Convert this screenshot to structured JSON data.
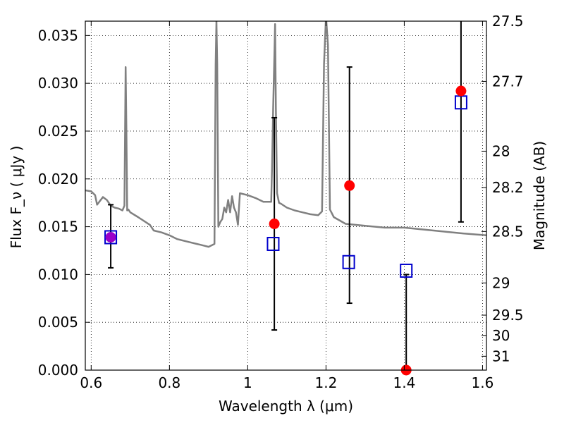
{
  "chart_data": {
    "type": "scatter",
    "xlabel": "Wavelength  λ (μm)",
    "ylabel": "Flux  F_ν  ( μJy )",
    "ylabel_right": "Magnitude (AB)",
    "xlim": [
      0.585,
      1.61
    ],
    "ylim": [
      0.0,
      0.0365
    ],
    "grid": true,
    "x_ticks": [
      {
        "value": 0.6,
        "label": "0.6"
      },
      {
        "value": 0.8,
        "label": "0.8"
      },
      {
        "value": 1.0,
        "label": "1"
      },
      {
        "value": 1.2,
        "label": "1.2"
      },
      {
        "value": 1.4,
        "label": "1.4"
      },
      {
        "value": 1.6,
        "label": "1.6"
      }
    ],
    "y_ticks": [
      {
        "value": 0.0,
        "label": "0.000"
      },
      {
        "value": 0.005,
        "label": "0.005"
      },
      {
        "value": 0.01,
        "label": "0.010"
      },
      {
        "value": 0.015,
        "label": "0.015"
      },
      {
        "value": 0.02,
        "label": "0.020"
      },
      {
        "value": 0.025,
        "label": "0.025"
      },
      {
        "value": 0.03,
        "label": "0.030"
      },
      {
        "value": 0.035,
        "label": "0.035"
      }
    ],
    "right_ticks": [
      {
        "label": "27.5",
        "flux": 0.0365
      },
      {
        "label": "27.7",
        "flux": 0.0302
      },
      {
        "label": "28",
        "flux": 0.0229
      },
      {
        "label": "28.2",
        "flux": 0.0191
      },
      {
        "label": "28.5",
        "flux": 0.0145
      },
      {
        "label": "29",
        "flux": 0.00912
      },
      {
        "label": "29.5",
        "flux": 0.00575
      },
      {
        "label": "30",
        "flux": 0.00363
      },
      {
        "label": "31",
        "flux": 0.00145
      }
    ],
    "sed_spectrum": {
      "name": "",
      "color": "#808080",
      "x": [
        0.585,
        0.6,
        0.61,
        0.615,
        0.63,
        0.64,
        0.65,
        0.66,
        0.67,
        0.68,
        0.685,
        0.688,
        0.69,
        0.692,
        0.695,
        0.7,
        0.72,
        0.75,
        0.76,
        0.78,
        0.8,
        0.82,
        0.85,
        0.87,
        0.88,
        0.89,
        0.9,
        0.915,
        0.918,
        0.92,
        0.922,
        0.925,
        0.93,
        0.935,
        0.94,
        0.945,
        0.95,
        0.955,
        0.96,
        0.965,
        0.97,
        0.975,
        0.98,
        1.0,
        1.02,
        1.04,
        1.06,
        1.062,
        1.065,
        1.07,
        1.072,
        1.075,
        1.08,
        1.085,
        1.1,
        1.12,
        1.14,
        1.16,
        1.18,
        1.19,
        1.195,
        1.2,
        1.205,
        1.21,
        1.22,
        1.25,
        1.3,
        1.35,
        1.4,
        1.45,
        1.5,
        1.55,
        1.61
      ],
      "y": [
        0.0188,
        0.0187,
        0.0183,
        0.0173,
        0.0181,
        0.0178,
        0.0172,
        0.017,
        0.0169,
        0.0167,
        0.0172,
        0.0317,
        0.025,
        0.0167,
        0.0168,
        0.0165,
        0.016,
        0.0152,
        0.0146,
        0.0144,
        0.0141,
        0.0137,
        0.0134,
        0.0132,
        0.0131,
        0.013,
        0.0129,
        0.0132,
        0.032,
        0.0365,
        0.032,
        0.015,
        0.0155,
        0.0158,
        0.017,
        0.0165,
        0.0178,
        0.0165,
        0.0182,
        0.017,
        0.0165,
        0.0152,
        0.0185,
        0.0183,
        0.018,
        0.0176,
        0.0176,
        0.021,
        0.0275,
        0.0362,
        0.0275,
        0.0185,
        0.0175,
        0.0174,
        0.017,
        0.0167,
        0.0165,
        0.0163,
        0.0162,
        0.0166,
        0.032,
        0.037,
        0.034,
        0.0168,
        0.016,
        0.0153,
        0.0151,
        0.0149,
        0.0149,
        0.0147,
        0.0145,
        0.0143,
        0.0141
      ]
    },
    "errorbars": [
      {
        "x": 0.65,
        "low": 0.0107,
        "high": 0.0173
      },
      {
        "x": 1.068,
        "low": 0.0042,
        "high": 0.0264
      },
      {
        "x": 1.26,
        "low": 0.007,
        "high": 0.0317
      },
      {
        "x": 1.405,
        "low": 0.0,
        "high": 0.01
      },
      {
        "x": 1.545,
        "low": 0.0155,
        "high": 0.0365
      }
    ],
    "model_points": {
      "name": "",
      "color": "#0000cc",
      "marker": "open-square",
      "x": [
        0.65,
        1.065,
        1.258,
        1.405,
        1.545
      ],
      "y": [
        0.0139,
        0.0132,
        0.0113,
        0.0104,
        0.028
      ]
    },
    "observed_points": {
      "name": "",
      "color": "#ff0000",
      "marker": "filled-circle",
      "x": [
        0.65,
        1.068,
        1.26,
        1.405,
        1.545
      ],
      "y": [
        0.0139,
        0.0153,
        0.0193,
        0.0,
        0.0292
      ]
    },
    "overlap_color": "#9b00c8"
  }
}
